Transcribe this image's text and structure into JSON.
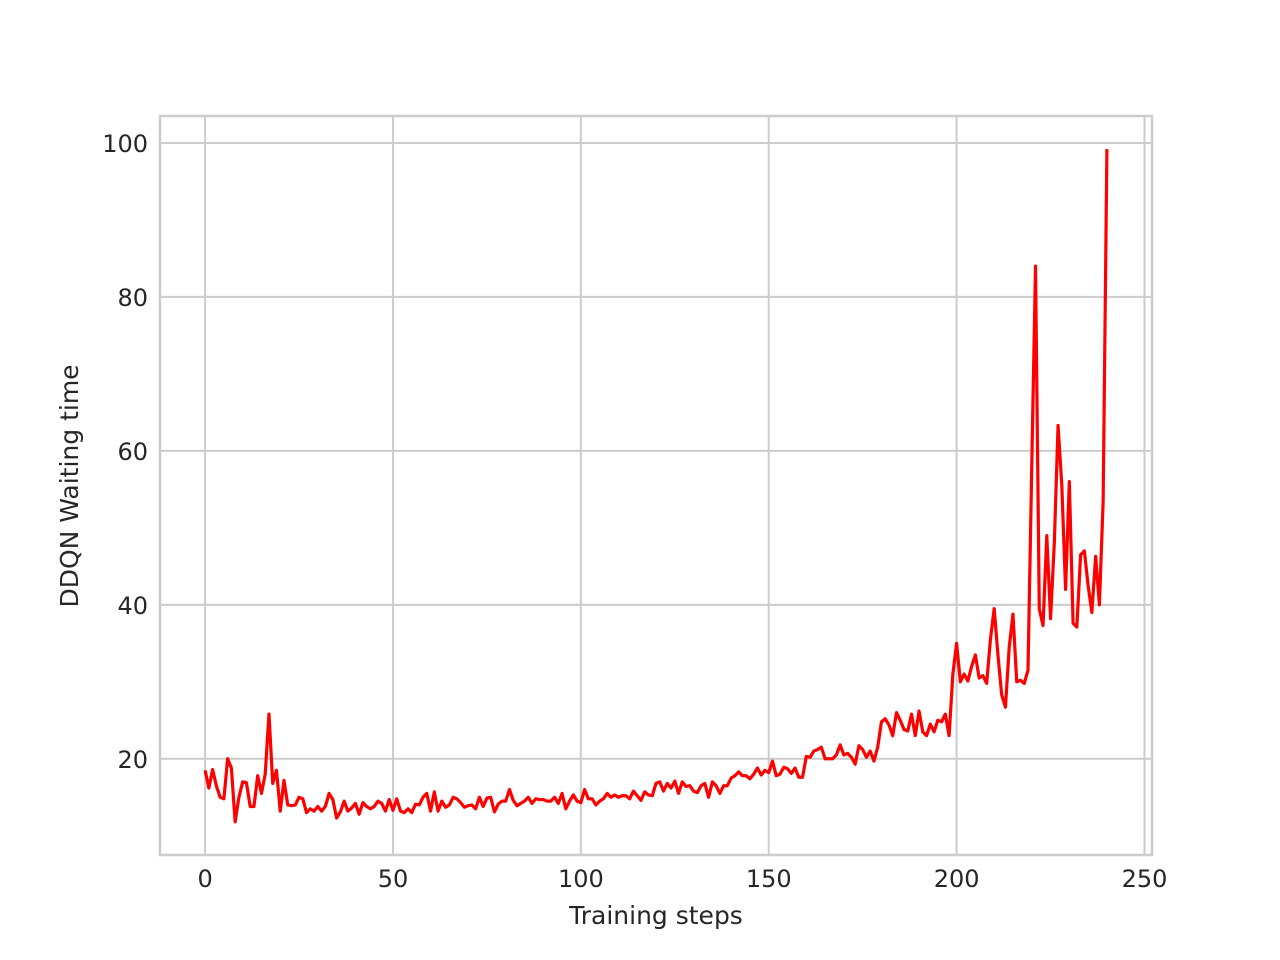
{
  "chart_data": {
    "type": "line",
    "title": "",
    "xlabel": "Training steps",
    "ylabel": "DDQN Waiting time",
    "xlim": [
      -12,
      252
    ],
    "ylim": [
      7.5,
      103.5
    ],
    "x_ticks": [
      0,
      50,
      100,
      150,
      200,
      250
    ],
    "y_ticks": [
      20,
      40,
      60,
      80,
      100
    ],
    "grid": true,
    "line_color": "#ff0000",
    "series": [
      {
        "values": [
          18.5,
          16.2,
          18.6,
          16.5,
          15.0,
          14.8,
          20.0,
          18.8,
          11.8,
          15.0,
          17.0,
          16.9,
          13.8,
          13.8,
          17.8,
          15.5,
          18.0,
          25.8,
          16.8,
          18.5,
          13.2,
          17.2,
          14.0,
          13.9,
          14.0,
          15.0,
          14.8,
          13.0,
          13.5,
          13.2,
          13.8,
          13.2,
          13.8,
          15.5,
          14.7,
          12.3,
          13.1,
          14.5,
          13.2,
          13.6,
          14.2,
          12.8,
          14.3,
          13.8,
          13.5,
          13.8,
          14.5,
          14.2,
          13.2,
          14.7,
          13.3,
          14.8,
          13.2,
          13.0,
          13.5,
          13.0,
          14.1,
          14.0,
          15.0,
          15.5,
          13.2,
          15.7,
          13.2,
          14.5,
          13.7,
          14.0,
          15.0,
          14.8,
          14.3,
          13.7,
          13.9,
          14.0,
          13.5,
          15.0,
          13.8,
          14.9,
          15.0,
          13.1,
          14.1,
          14.5,
          14.5,
          16.0,
          14.6,
          13.9,
          14.2,
          14.5,
          15.0,
          14.2,
          14.8,
          14.7,
          14.7,
          14.5,
          14.5,
          15.0,
          14.2,
          15.5,
          13.5,
          14.5,
          15.3,
          14.5,
          14.3,
          16.0,
          14.8,
          14.8,
          14.0,
          14.5,
          14.8,
          15.5,
          15.0,
          15.3,
          15.0,
          15.2,
          15.2,
          14.8,
          15.8,
          15.2,
          14.6,
          15.7,
          15.3,
          15.2,
          16.8,
          17.0,
          15.8,
          16.8,
          16.2,
          17.1,
          15.5,
          17.0,
          16.4,
          16.5,
          15.8,
          15.6,
          16.5,
          16.8,
          15.0,
          17.0,
          16.5,
          15.5,
          16.5,
          16.5,
          17.5,
          17.8,
          18.3,
          17.8,
          17.8,
          17.4,
          18.0,
          18.8,
          17.9,
          18.5,
          18.2,
          19.7,
          17.8,
          18.0,
          18.9,
          18.7,
          18.1,
          18.8,
          17.6,
          17.6,
          20.3,
          20.2,
          21.0,
          21.2,
          21.5,
          20.0,
          20.0,
          20.0,
          20.5,
          21.8,
          20.5,
          20.7,
          20.2,
          19.3,
          21.7,
          21.2,
          20.2,
          21.0,
          19.7,
          21.5,
          24.8,
          25.2,
          24.4,
          23.0,
          26.0,
          25.0,
          23.8,
          23.6,
          25.8,
          23.0,
          26.2,
          23.5,
          23.0,
          24.5,
          23.5,
          25.0,
          24.8,
          25.8,
          23.0,
          31.0,
          35.0,
          30.0,
          31.0,
          30.1,
          32.0,
          33.5,
          30.5,
          30.8,
          29.8,
          35.5,
          39.5,
          33.5,
          28.3,
          26.7,
          34.5,
          38.8,
          30.0,
          30.2,
          29.8,
          31.5,
          58.0,
          84.0,
          39.5,
          37.3,
          49.0,
          38.2,
          48.0,
          63.3,
          55.5,
          42.0,
          56.0,
          37.6,
          37.1,
          46.5,
          47.0,
          42.5,
          39.0,
          46.3,
          40.0,
          53.5,
          99.2
        ]
      }
    ]
  }
}
